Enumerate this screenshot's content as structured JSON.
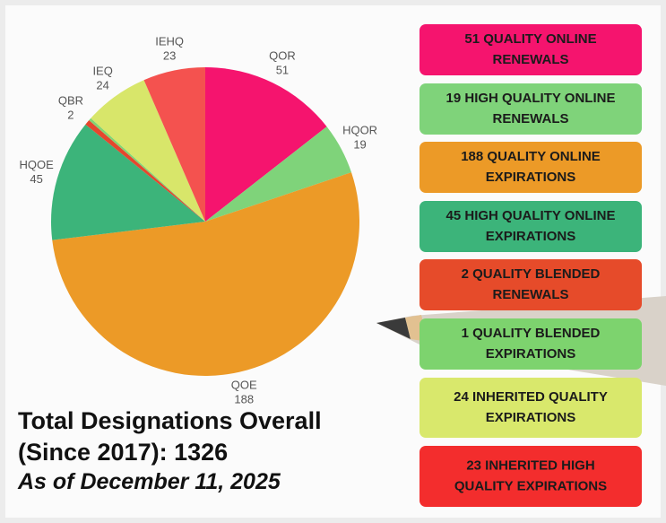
{
  "chart_data": {
    "type": "pie",
    "categories": [
      "QOR",
      "HQOR",
      "QOE",
      "HQOE",
      "QBR",
      null,
      "IEQ",
      "IEHQ"
    ],
    "values": [
      51,
      19,
      188,
      45,
      2,
      1,
      24,
      23
    ],
    "colors": [
      "#f5146e",
      "#7fd37a",
      "#ec9a27",
      "#3cb47a",
      "#e5472e",
      "#83d574",
      "#d8e66a",
      "#f4524f"
    ]
  },
  "legend_boxes": [
    {
      "lines": [
        "51 QUALITY ONLINE",
        "RENEWALS"
      ],
      "color": "#f5146e"
    },
    {
      "lines": [
        "19 HIGH QUALITY ONLINE",
        "RENEWALS"
      ],
      "color": "#7fd37a"
    },
    {
      "lines": [
        "188 QUALITY ONLINE",
        "EXPIRATIONS"
      ],
      "color": "#ec9a27"
    },
    {
      "lines": [
        "45 HIGH QUALITY ONLINE",
        "EXPIRATIONS"
      ],
      "color": "#3cb47a"
    },
    {
      "lines": [
        "2 QUALITY BLENDED",
        "RENEWALS"
      ],
      "color": "#e64b2a"
    },
    {
      "lines": [
        "1 QUALITY BLENDED",
        "EXPIRATIONS"
      ],
      "color": "#7dd36e"
    },
    {
      "lines": [
        "24 INHERITED QUALITY",
        "EXPIRATIONS"
      ],
      "color": "#d9e86c"
    },
    {
      "lines": [
        "23 INHERITED HIGH",
        "QUALITY EXPIRATIONS"
      ],
      "color": "#f32d2d"
    }
  ],
  "footer": {
    "lines": [
      "Total Designations Overall",
      "(Since 2017): 1326"
    ],
    "date": "As of December 11, 2025"
  }
}
